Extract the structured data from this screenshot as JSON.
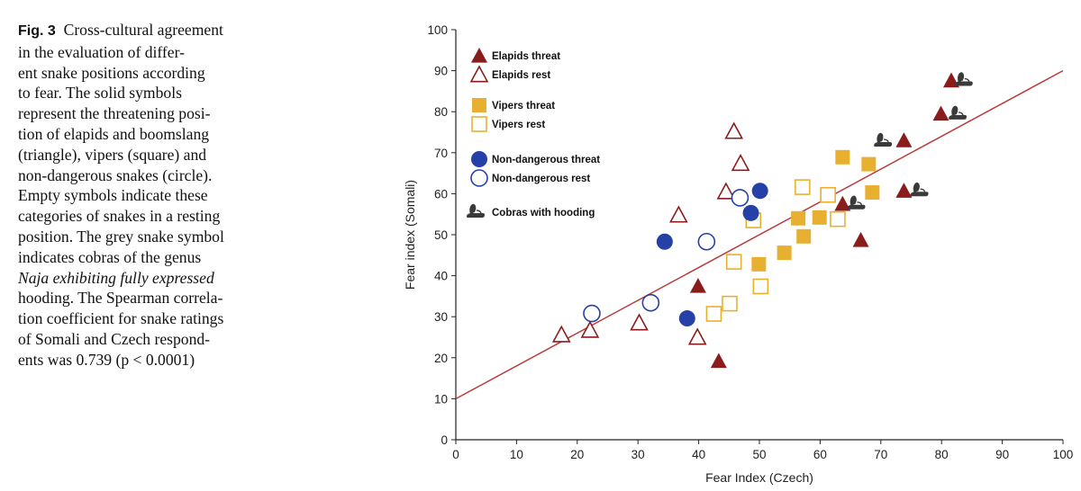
{
  "caption": {
    "fig_label": "Fig. 3",
    "lines": [
      "Cross-cultural agreement",
      "in the evaluation of differ-",
      "ent snake positions according",
      "to fear. The solid symbols",
      "represent the threatening posi-",
      "tion of elapids and boomslang",
      "(triangle), vipers (square) and",
      "non-dangerous snakes (circle).",
      "Empty symbols indicate these",
      "categories of snakes in a resting",
      "position. The grey snake symbol",
      "indicates cobras of the genus",
      "Naja exhibiting fully expressed",
      "hooding. The Spearman correla-",
      "tion coefficient for snake ratings",
      "of Somali and Czech respond-",
      "ents was 0.739 (p < 0.0001)"
    ]
  },
  "colors": {
    "elapid": "#8b1c1c",
    "viper": "#e8b030",
    "nondangerous": "#2541a8",
    "cobra_icon": "#3a3a3a",
    "regression": "#b83a3a",
    "axis": "#222222"
  },
  "chart_data": {
    "type": "scatter",
    "title": "",
    "xlabel": "Fear Index (Czech)",
    "ylabel": "Fear index (Somali)",
    "xlim": [
      0,
      100
    ],
    "ylim": [
      0,
      100
    ],
    "xticks": [
      "0",
      "10",
      "20",
      "30",
      "40",
      "50",
      "60",
      "70",
      "80",
      "90",
      "100"
    ],
    "yticks": [
      "0",
      "10",
      "20",
      "30",
      "40",
      "50",
      "60",
      "70",
      "80",
      "90",
      "100"
    ],
    "regression_line": {
      "x": [
        0,
        100
      ],
      "y": [
        10,
        90
      ]
    },
    "series": [
      {
        "name": "Elapids threat",
        "marker": "triangle",
        "filled": true,
        "color_key": "elapid",
        "points": [
          [
            39.9,
            37.5
          ],
          [
            43.3,
            19.2
          ],
          [
            63.7,
            57.5
          ],
          [
            66.7,
            48.7
          ],
          [
            73.8,
            73.0
          ],
          [
            73.8,
            60.7
          ],
          [
            79.9,
            79.5
          ],
          [
            81.6,
            87.6
          ]
        ]
      },
      {
        "name": "Elapids rest",
        "marker": "triangle",
        "filled": false,
        "color_key": "elapid",
        "points": [
          [
            17.4,
            25.6
          ],
          [
            22.1,
            26.7
          ],
          [
            30.2,
            28.5
          ],
          [
            36.7,
            54.8
          ],
          [
            39.8,
            25.0
          ],
          [
            44.5,
            60.5
          ],
          [
            45.8,
            75.2
          ],
          [
            46.9,
            67.4
          ]
        ]
      },
      {
        "name": "Vipers threat",
        "marker": "square",
        "filled": true,
        "color_key": "viper",
        "points": [
          [
            49.9,
            42.8
          ],
          [
            54.1,
            45.6
          ],
          [
            56.4,
            54.0
          ],
          [
            57.3,
            49.6
          ],
          [
            59.9,
            54.2
          ],
          [
            63.7,
            68.9
          ],
          [
            68.0,
            67.2
          ],
          [
            68.6,
            60.3
          ]
        ]
      },
      {
        "name": "Vipers rest",
        "marker": "square",
        "filled": false,
        "color_key": "viper",
        "points": [
          [
            42.5,
            30.7
          ],
          [
            45.1,
            33.2
          ],
          [
            45.8,
            43.4
          ],
          [
            49.0,
            53.5
          ],
          [
            50.2,
            37.4
          ],
          [
            57.1,
            61.6
          ],
          [
            61.3,
            59.7
          ],
          [
            62.9,
            53.8
          ]
        ]
      },
      {
        "name": "Non-dangerous threat",
        "marker": "circle",
        "filled": true,
        "color_key": "nondangerous",
        "points": [
          [
            34.4,
            48.3
          ],
          [
            38.1,
            29.6
          ],
          [
            48.6,
            55.3
          ],
          [
            50.1,
            60.7
          ]
        ]
      },
      {
        "name": "Non-dangerous rest",
        "marker": "circle",
        "filled": false,
        "color_key": "nondangerous",
        "points": [
          [
            22.4,
            30.8
          ],
          [
            32.1,
            33.4
          ],
          [
            41.3,
            48.3
          ],
          [
            46.8,
            59.0
          ]
        ]
      }
    ],
    "cobra_markers": {
      "name": "Cobras with hooding",
      "points": [
        [
          65.8,
          57.5
        ],
        [
          70.2,
          72.8
        ],
        [
          76.2,
          60.7
        ],
        [
          82.5,
          79.4
        ],
        [
          83.5,
          87.6
        ]
      ]
    },
    "legend": {
      "position": "top-left",
      "entries": [
        "Elapids threat",
        "Elapids rest",
        "Vipers threat",
        "Vipers rest",
        "Non-dangerous threat",
        "Non-dangerous rest",
        "Cobras with hooding"
      ]
    }
  }
}
